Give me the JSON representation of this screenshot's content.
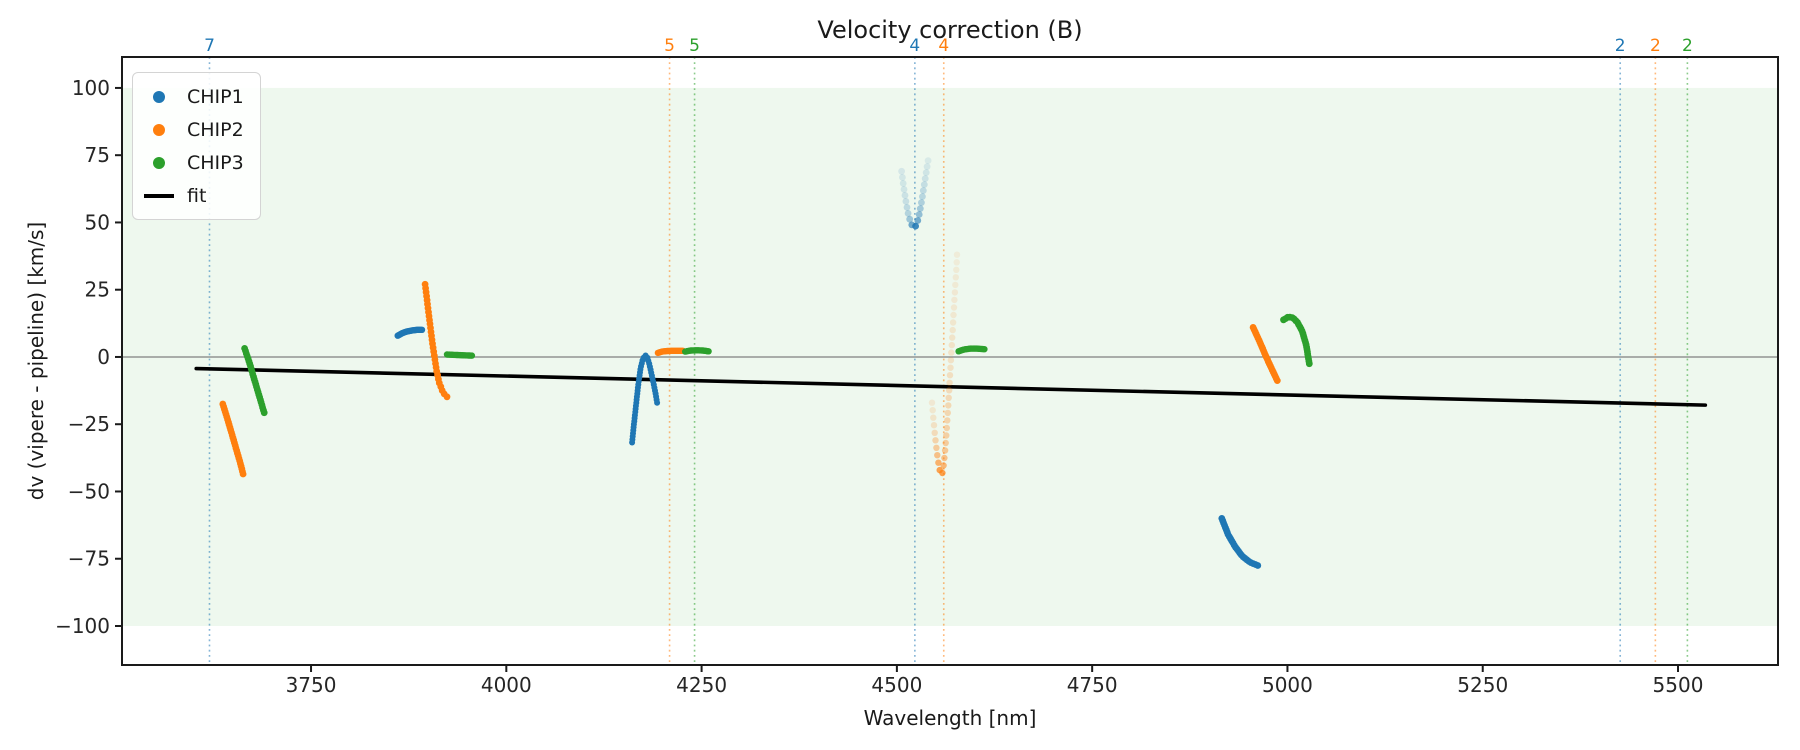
{
  "chart_data": {
    "type": "scatter",
    "title": "Velocity correction (B)",
    "xlabel": "Wavelength [nm]",
    "ylabel": "dv (vipere - pipeline) [km/s]",
    "xlim": [
      3508,
      5628
    ],
    "ylim": [
      -114.5,
      111.5
    ],
    "xticks": [
      3750,
      4000,
      4250,
      4500,
      4750,
      5000,
      5250,
      5500
    ],
    "yticks": [
      -100,
      -75,
      -50,
      -25,
      0,
      25,
      50,
      75,
      100
    ],
    "grid": false,
    "legend_position": "upper left",
    "band": {
      "ymin": -100,
      "ymax": 100,
      "color": "#2ca02c",
      "alpha": 0.08
    },
    "zero_line": {
      "y": 0,
      "color": "#808080"
    },
    "fit": {
      "label": "fit",
      "color": "#000000",
      "x": [
        3603,
        5535
      ],
      "y": [
        -4.3,
        -17.9
      ]
    },
    "order_lines": [
      {
        "x": 3620,
        "label": "7",
        "color": "#1f77b4"
      },
      {
        "x": 4209,
        "label": "5",
        "color": "#ff7f0e"
      },
      {
        "x": 4241,
        "label": "5",
        "color": "#2ca02c"
      },
      {
        "x": 4523,
        "label": "4",
        "color": "#1f77b4"
      },
      {
        "x": 4560,
        "label": "4",
        "color": "#ff7f0e"
      },
      {
        "x": 5426,
        "label": "2",
        "color": "#1f77b4"
      },
      {
        "x": 5471,
        "label": "2",
        "color": "#ff7f0e"
      },
      {
        "x": 5512,
        "label": "2",
        "color": "#2ca02c"
      }
    ],
    "series": [
      {
        "name": "CHIP1",
        "color": "#1f77b4",
        "clusters": [
          {
            "r": 3.2,
            "n": 26,
            "points": [
              [
                3861,
                7.9
              ],
              [
                3867,
                8.9
              ],
              [
                3873,
                9.5
              ],
              [
                3880,
                9.9
              ],
              [
                3886,
                10.1
              ],
              [
                3892,
                10.1
              ]
            ]
          },
          {
            "r": 3.0,
            "n": 46,
            "points": [
              [
                4161,
                -31.8
              ],
              [
                4163,
                -26
              ],
              [
                4166,
                -18
              ],
              [
                4169,
                -10
              ],
              [
                4172,
                -4
              ],
              [
                4175,
                -0.6
              ],
              [
                4178,
                0.6
              ],
              [
                4180,
                0.2
              ],
              [
                4183,
                -2.5
              ],
              [
                4186,
                -6.5
              ],
              [
                4189,
                -10.5
              ],
              [
                4191,
                -13.5
              ],
              [
                4193,
                -17
              ]
            ]
          },
          {
            "r": 3.4,
            "n": 22,
            "points": [
              [
                4506,
                69
              ],
              [
                4509,
                62.5
              ],
              [
                4512,
                57
              ],
              [
                4515,
                52.5
              ],
              [
                4518,
                49.6
              ],
              [
                4521,
                48.2
              ],
              [
                4523,
                48.1
              ],
              [
                4526,
                49.8
              ],
              [
                4529,
                53.5
              ],
              [
                4532,
                58.5
              ],
              [
                4535,
                64
              ],
              [
                4538,
                69.5
              ],
              [
                4540,
                73
              ]
            ],
            "alphas": [
              0.12,
              0.15,
              0.2,
              0.3,
              0.5,
              0.8,
              0.95,
              0.65,
              0.4,
              0.28,
              0.2,
              0.14,
              0.1
            ]
          },
          {
            "r": 3.4,
            "n": 26,
            "points": [
              [
                4916,
                -60
              ],
              [
                4924,
                -66
              ],
              [
                4933,
                -70.5
              ],
              [
                4942,
                -74
              ],
              [
                4952,
                -76.3
              ],
              [
                4962,
                -77.5
              ]
            ]
          }
        ]
      },
      {
        "name": "CHIP2",
        "color": "#ff7f0e",
        "clusters": [
          {
            "r": 3.4,
            "n": 28,
            "points": [
              [
                3637,
                -17.5
              ],
              [
                3643,
                -23
              ],
              [
                3649,
                -29
              ],
              [
                3655,
                -35
              ],
              [
                3660,
                -40
              ],
              [
                3663,
                -43.5
              ]
            ]
          },
          {
            "r": 3.4,
            "n": 30,
            "points": [
              [
                3896,
                27
              ],
              [
                3899,
                20
              ],
              [
                3902,
                13
              ],
              [
                3905,
                6
              ],
              [
                3908,
                0
              ],
              [
                3911,
                -5.5
              ],
              [
                3914,
                -9.5
              ],
              [
                3918,
                -12.5
              ],
              [
                3921,
                -14
              ],
              [
                3924,
                -14.8
              ]
            ]
          },
          {
            "r": 3.2,
            "n": 24,
            "points": [
              [
                4194,
                1.5
              ],
              [
                4199,
                2.0
              ],
              [
                4205,
                2.2
              ],
              [
                4212,
                2.3
              ],
              [
                4219,
                2.3
              ],
              [
                4226,
                2.3
              ]
            ]
          },
          {
            "r": 3.2,
            "n": 40,
            "points": [
              [
                4545,
                -17
              ],
              [
                4548,
                -27
              ],
              [
                4551,
                -35
              ],
              [
                4554,
                -41
              ],
              [
                4556,
                -43.8
              ],
              [
                4558,
                -43.5
              ],
              [
                4560,
                -40
              ],
              [
                4562,
                -34
              ],
              [
                4564,
                -26
              ],
              [
                4566,
                -17
              ],
              [
                4568,
                -7
              ],
              [
                4570,
                3
              ],
              [
                4572,
                13
              ],
              [
                4574,
                23
              ],
              [
                4576,
                32
              ],
              [
                4577,
                38
              ]
            ],
            "alphas": [
              0.12,
              0.2,
              0.4,
              0.65,
              0.8,
              0.75,
              0.5,
              0.38,
              0.3,
              0.25,
              0.2,
              0.17,
              0.14,
              0.12,
              0.1,
              0.09
            ]
          },
          {
            "r": 3.4,
            "n": 26,
            "points": [
              [
                4956,
                11
              ],
              [
                4964,
                6
              ],
              [
                4972,
                0.5
              ],
              [
                4980,
                -4.5
              ],
              [
                4987,
                -8.8
              ]
            ]
          }
        ]
      },
      {
        "name": "CHIP3",
        "color": "#2ca02c",
        "clusters": [
          {
            "r": 3.4,
            "n": 26,
            "points": [
              [
                3665,
                3.2
              ],
              [
                3671,
                -2
              ],
              [
                3677,
                -8
              ],
              [
                3683,
                -13.8
              ],
              [
                3690,
                -20.7
              ]
            ]
          },
          {
            "r": 3.2,
            "n": 22,
            "points": [
              [
                3924,
                0.9
              ],
              [
                3932,
                0.8
              ],
              [
                3940,
                0.7
              ],
              [
                3948,
                0.6
              ],
              [
                3956,
                0.5
              ]
            ]
          },
          {
            "r": 3.2,
            "n": 22,
            "points": [
              [
                4229,
                2.0
              ],
              [
                4236,
                2.4
              ],
              [
                4244,
                2.5
              ],
              [
                4252,
                2.4
              ],
              [
                4259,
                2.1
              ]
            ]
          },
          {
            "r": 3.2,
            "n": 22,
            "points": [
              [
                4579,
                2.1
              ],
              [
                4586,
                2.8
              ],
              [
                4594,
                3.1
              ],
              [
                4603,
                3.1
              ],
              [
                4612,
                2.9
              ]
            ]
          },
          {
            "r": 3.4,
            "n": 26,
            "points": [
              [
                4995,
                13.8
              ],
              [
                5001,
                14.9
              ],
              [
                5007,
                14.6
              ],
              [
                5013,
                12.8
              ],
              [
                5019,
                9.5
              ],
              [
                5024,
                4.5
              ],
              [
                5028,
                -2.5
              ]
            ]
          }
        ]
      }
    ]
  }
}
